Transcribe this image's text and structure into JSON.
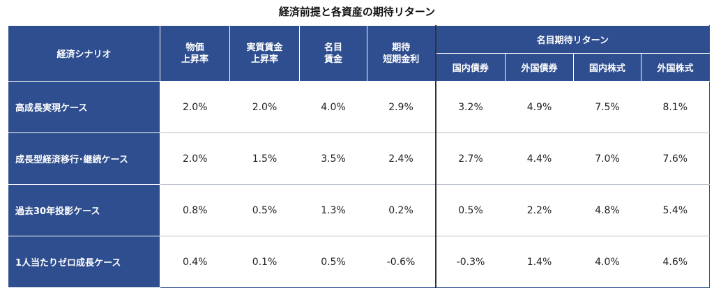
{
  "title": "経済前提と各資産の期待リターン",
  "headers": {
    "scenario": "経済シナリオ",
    "inflation": [
      "物価",
      "上昇率"
    ],
    "real_wage": [
      "実質賃金",
      "上昇率"
    ],
    "nominal_wage": [
      "名目",
      "賃金"
    ],
    "expected_short_rate": [
      "期待",
      "短期金利"
    ],
    "nominal_return_group": "名目期待リターン",
    "return_columns": [
      "国内債券",
      "外国債券",
      "国内株式",
      "外国株式"
    ]
  },
  "rows": [
    {
      "name": "高成長実現ケース",
      "values": [
        "2.0%",
        "2.0%",
        "4.0%",
        "2.9%",
        "3.2%",
        "4.9%",
        "7.5%",
        "8.1%"
      ]
    },
    {
      "name": "成長型経済移行･継続ケース",
      "values": [
        "2.0%",
        "1.5%",
        "3.5%",
        "2.4%",
        "2.7%",
        "4.4%",
        "7.0%",
        "7.6%"
      ]
    },
    {
      "name": "過去30年投影ケース",
      "values": [
        "0.8%",
        "0.5%",
        "1.3%",
        "0.2%",
        "0.5%",
        "2.2%",
        "4.8%",
        "5.4%"
      ]
    },
    {
      "name": "1人当たりゼロ成長ケース",
      "values": [
        "0.4%",
        "0.1%",
        "0.5%",
        "-0.6%",
        "-0.3%",
        "1.4%",
        "4.0%",
        "4.6%"
      ]
    }
  ]
}
